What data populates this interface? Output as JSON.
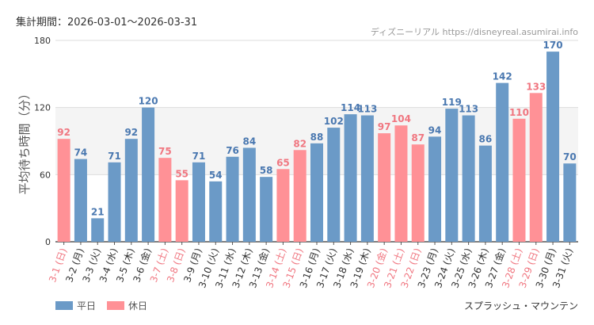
{
  "header": {
    "period": "集計期間：2026-03-01〜2026-03-31",
    "credit": "ディズニーリアル https://disneyreal.asumirai.info"
  },
  "chart_data": {
    "type": "bar",
    "title": "",
    "ylabel": "平均待ち時間（分）",
    "xlabel": "",
    "ylim": [
      0,
      180
    ],
    "yticks": [
      0,
      60,
      120,
      180
    ],
    "grid": true,
    "legend_position": "bottom-left",
    "attraction": "スプラッシュ・マウンテン",
    "legend": [
      {
        "key": "weekday",
        "label": "平日",
        "color": "#6b9ac7"
      },
      {
        "key": "holiday",
        "label": "休日",
        "color": "#ff9196"
      }
    ],
    "label_colors": {
      "weekday": "#4a78b0",
      "holiday": "#f07680"
    },
    "categories": [
      "3-1 (日)",
      "3-2 (月)",
      "3-3 (火)",
      "3-4 (水)",
      "3-5 (木)",
      "3-6 (金)",
      "3-7 (土)",
      "3-8 (日)",
      "3-9 (月)",
      "3-10 (火)",
      "3-11 (水)",
      "3-12 (木)",
      "3-13 (金)",
      "3-14 (土)",
      "3-15 (日)",
      "3-16 (月)",
      "3-17 (火)",
      "3-18 (水)",
      "3-19 (木)",
      "3-20 (金)",
      "3-21 (土)",
      "3-22 (日)",
      "3-23 (月)",
      "3-24 (火)",
      "3-25 (水)",
      "3-26 (木)",
      "3-27 (金)",
      "3-28 (土)",
      "3-29 (日)",
      "3-30 (月)",
      "3-31 (火)"
    ],
    "values": [
      92,
      74,
      21,
      71,
      92,
      120,
      75,
      55,
      71,
      54,
      76,
      84,
      58,
      65,
      82,
      88,
      102,
      114,
      113,
      97,
      104,
      87,
      94,
      119,
      113,
      86,
      142,
      110,
      133,
      170,
      70
    ],
    "day_type": [
      "holiday",
      "weekday",
      "weekday",
      "weekday",
      "weekday",
      "weekday",
      "holiday",
      "holiday",
      "weekday",
      "weekday",
      "weekday",
      "weekday",
      "weekday",
      "holiday",
      "holiday",
      "weekday",
      "weekday",
      "weekday",
      "weekday",
      "holiday",
      "holiday",
      "holiday",
      "weekday",
      "weekday",
      "weekday",
      "weekday",
      "weekday",
      "holiday",
      "holiday",
      "weekday",
      "weekday"
    ]
  }
}
